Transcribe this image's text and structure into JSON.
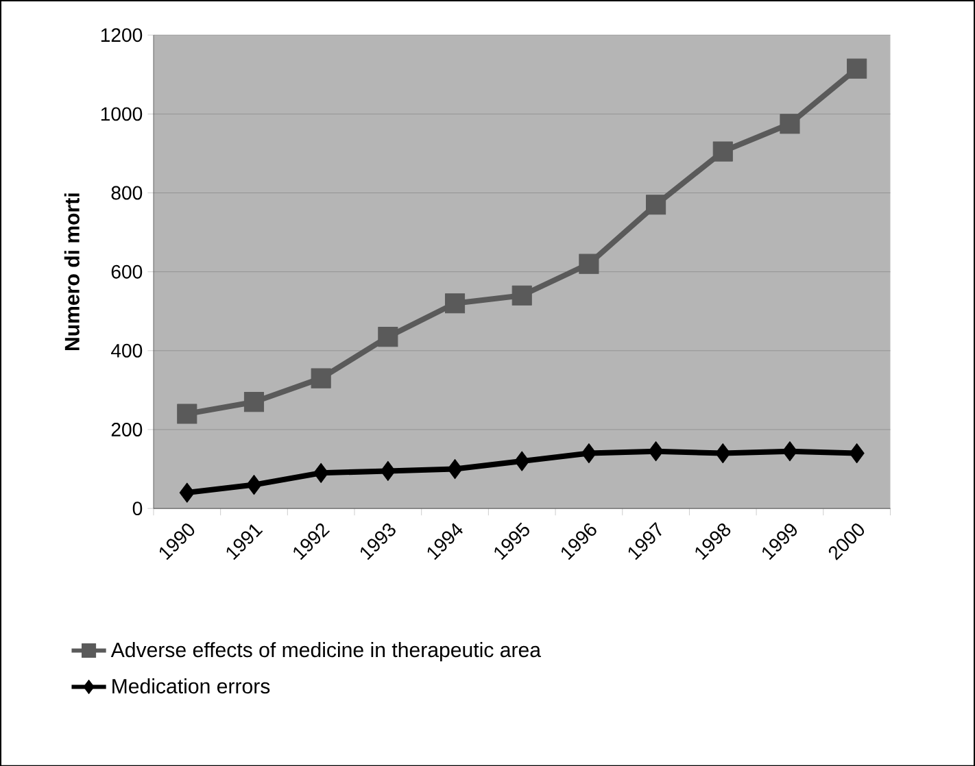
{
  "chart_data": {
    "type": "line",
    "ylabel": "Numero di morti",
    "categories": [
      "1990",
      "1991",
      "1992",
      "1993",
      "1994",
      "1995",
      "1996",
      "1997",
      "1998",
      "1999",
      "2000"
    ],
    "series": [
      {
        "name": "Adverse effects of medicine in therapeutic area",
        "color": "#5a5a5a",
        "marker": "square",
        "values": [
          240,
          270,
          330,
          435,
          520,
          540,
          620,
          770,
          905,
          975,
          1115
        ]
      },
      {
        "name": "Medication errors",
        "color": "#000000",
        "marker": "diamond",
        "values": [
          40,
          60,
          90,
          95,
          100,
          120,
          140,
          145,
          140,
          145,
          140
        ]
      }
    ],
    "ylim": [
      0,
      1200
    ],
    "yticks": [
      0,
      200,
      400,
      600,
      800,
      1000,
      1200
    ],
    "grid": "y",
    "legend": "bottom"
  }
}
